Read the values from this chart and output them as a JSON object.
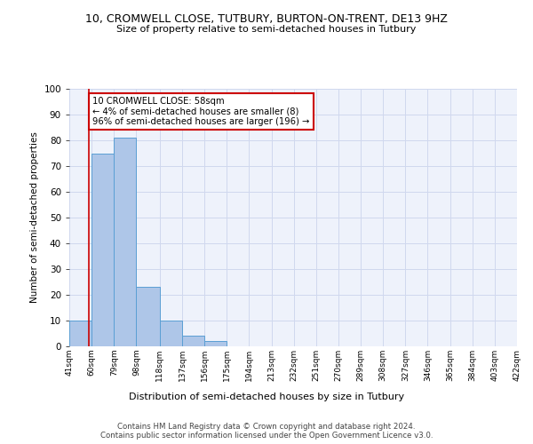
{
  "title_line1": "10, CROMWELL CLOSE, TUTBURY, BURTON-ON-TRENT, DE13 9HZ",
  "title_line2": "Size of property relative to semi-detached houses in Tutbury",
  "xlabel": "Distribution of semi-detached houses by size in Tutbury",
  "ylabel": "Number of semi-detached properties",
  "bin_labels": [
    "41sqm",
    "60sqm",
    "79sqm",
    "98sqm",
    "118sqm",
    "137sqm",
    "156sqm",
    "175sqm",
    "194sqm",
    "213sqm",
    "232sqm",
    "251sqm",
    "270sqm",
    "289sqm",
    "308sqm",
    "327sqm",
    "346sqm",
    "365sqm",
    "384sqm",
    "403sqm",
    "422sqm"
  ],
  "bin_edges": [
    41,
    60,
    79,
    98,
    118,
    137,
    156,
    175,
    194,
    213,
    232,
    251,
    270,
    289,
    308,
    327,
    346,
    365,
    384,
    403,
    422
  ],
  "bar_heights": [
    10,
    75,
    81,
    23,
    10,
    4,
    2,
    0,
    0,
    0,
    0,
    0,
    0,
    0,
    0,
    0,
    0,
    0,
    0,
    0
  ],
  "bar_color": "#aec6e8",
  "bar_edgecolor": "#5a9fd4",
  "property_sqm": 58,
  "property_label": "10 CROMWELL CLOSE: 58sqm",
  "pct_smaller": 4,
  "count_smaller": 8,
  "pct_larger": 96,
  "count_larger": 196,
  "annotation_box_edgecolor": "#cc0000",
  "vline_color": "#cc0000",
  "ylim": [
    0,
    100
  ],
  "yticks": [
    0,
    10,
    20,
    30,
    40,
    50,
    60,
    70,
    80,
    90,
    100
  ],
  "grid_color": "#d0d8ee",
  "background_color": "#eef2fb",
  "footer_line1": "Contains HM Land Registry data © Crown copyright and database right 2024.",
  "footer_line2": "Contains public sector information licensed under the Open Government Licence v3.0."
}
